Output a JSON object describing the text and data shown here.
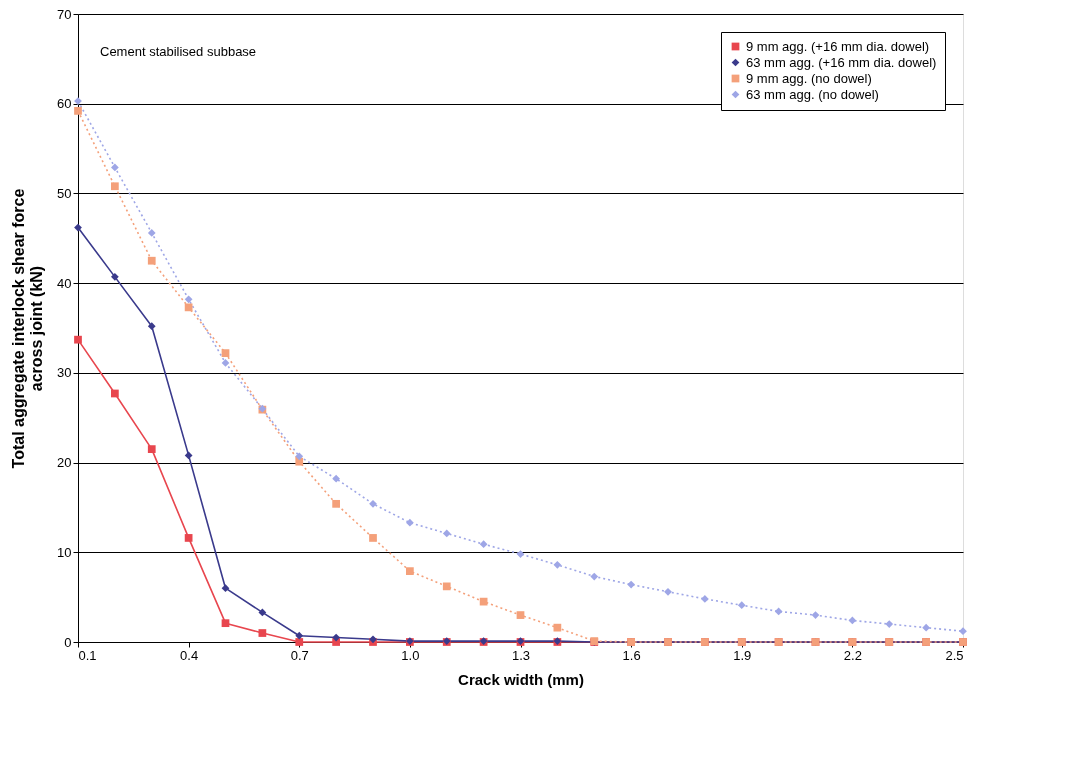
{
  "chart_data": {
    "type": "line",
    "xlabel": "Crack width (mm)",
    "ylabel": "Total aggregate interlock shear force\nacross joint (kN)",
    "annotations": [
      "Cement stabilised subbase"
    ],
    "x": [
      0.1,
      0.2,
      0.3,
      0.4,
      0.5,
      0.6,
      0.7,
      0.8,
      0.9,
      1.0,
      1.1,
      1.2,
      1.3,
      1.4,
      1.5,
      1.6,
      1.7,
      1.8,
      1.9,
      2.0,
      2.1,
      2.2,
      2.3,
      2.4,
      2.5
    ],
    "series": [
      {
        "name": "9 mm agg. (+16 mm dia. dowel)",
        "color": "#e8464e",
        "marker": "square",
        "line_style": "solid",
        "values": [
          33.7,
          27.7,
          21.5,
          11.6,
          2.1,
          1.0,
          0,
          0,
          0,
          0,
          0,
          0,
          0,
          0,
          0,
          0,
          0,
          0,
          0,
          0,
          0,
          0,
          0,
          0,
          0
        ]
      },
      {
        "name": "63 mm agg. (+16 mm dia. dowel)",
        "color": "#3a3a8c",
        "marker": "diamond",
        "line_style": "solid",
        "values": [
          46.2,
          40.7,
          35.2,
          20.8,
          6.0,
          3.3,
          0.7,
          0.5,
          0.3,
          0.1,
          0.1,
          0.1,
          0.1,
          0.1,
          0,
          0,
          0,
          0,
          0,
          0,
          0,
          0,
          0,
          0,
          0
        ]
      },
      {
        "name": "9 mm agg. (no dowel)",
        "color": "#f4a07a",
        "marker": "square",
        "line_style": "dotted",
        "values": [
          59.2,
          50.8,
          42.5,
          37.3,
          32.2,
          25.9,
          20.1,
          15.4,
          11.6,
          7.9,
          6.2,
          4.5,
          3.0,
          1.6,
          0.1,
          0,
          0,
          0,
          0,
          0,
          0,
          0,
          0,
          0,
          0
        ]
      },
      {
        "name": "63 mm agg. (no dowel)",
        "color": "#9ea6e6",
        "marker": "diamond",
        "line_style": "dotted",
        "values": [
          60.3,
          52.9,
          45.6,
          38.2,
          31.1,
          26.0,
          20.7,
          18.2,
          15.4,
          13.3,
          12.1,
          10.9,
          9.8,
          8.6,
          7.3,
          6.4,
          5.6,
          4.8,
          4.1,
          3.4,
          3.0,
          2.4,
          2.0,
          1.6,
          1.2
        ]
      }
    ],
    "xlim": [
      0.1,
      2.5
    ],
    "xticks": [
      0.1,
      0.4,
      0.7,
      {
        "value": 1.0,
        "label": "1.0"
      },
      1.3,
      1.6,
      1.9,
      2.2,
      2.5
    ],
    "ylim": [
      0,
      70
    ],
    "yticks": [
      0,
      10,
      20,
      30,
      40,
      50,
      60,
      70
    ],
    "grid": "y",
    "legend": "top right"
  }
}
